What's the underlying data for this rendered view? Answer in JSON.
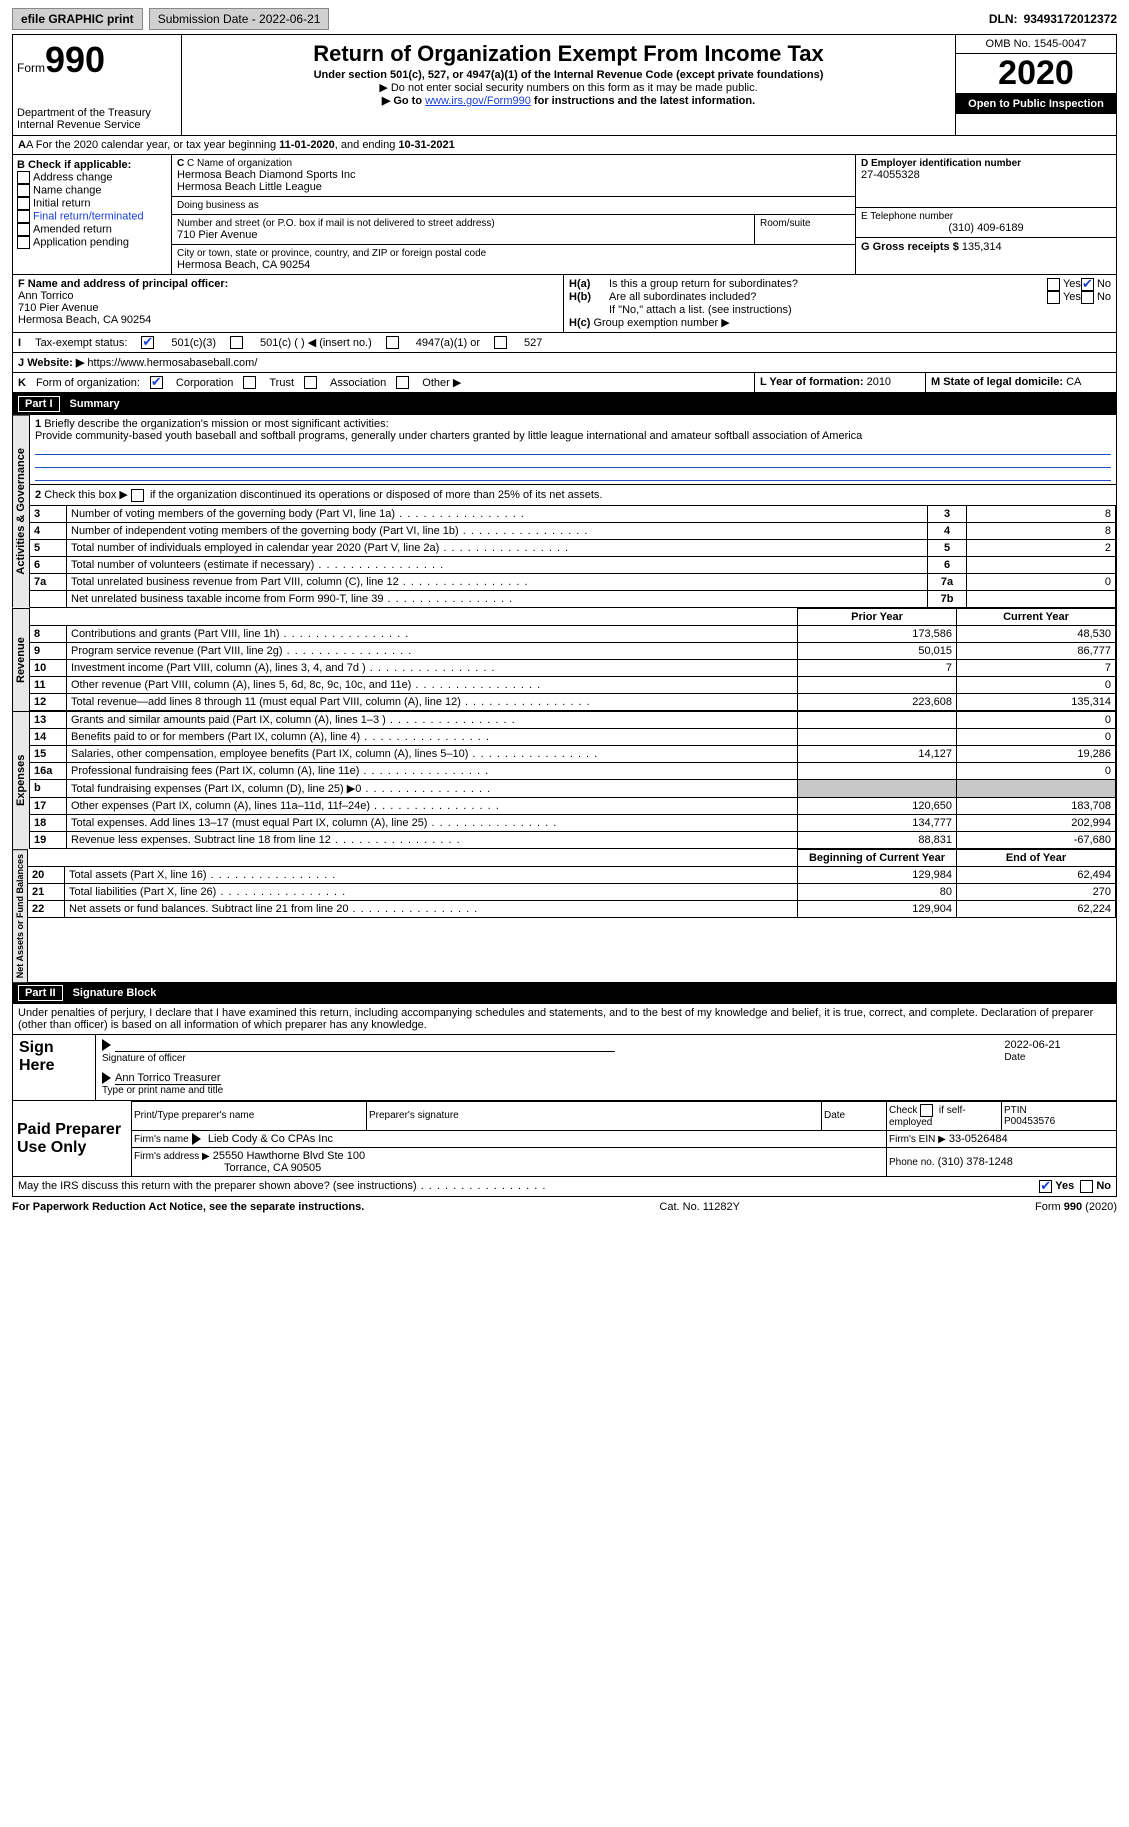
{
  "topbar": {
    "efile": "efile GRAPHIC print",
    "submission": "Submission Date - 2022-06-21",
    "dln_label": "DLN:",
    "dln": "93493172012372"
  },
  "header": {
    "form_word": "Form",
    "form_num": "990",
    "dept": "Department of the Treasury",
    "irs": "Internal Revenue Service",
    "title": "Return of Organization Exempt From Income Tax",
    "sub1": "Under section 501(c), 527, or 4947(a)(1) of the Internal Revenue Code (except private foundations)",
    "sub2": "▶ Do not enter social security numbers on this form as it may be made public.",
    "sub3_a": "▶ Go to ",
    "sub3_link": "www.irs.gov/Form990",
    "sub3_b": " for instructions and the latest information.",
    "omb": "OMB No. 1545-0047",
    "year": "2020",
    "open": "Open to Public Inspection"
  },
  "lineA": {
    "text_a": "A For the 2020 calendar year, or tax year beginning ",
    "begin": "11-01-2020",
    "text_b": ", and ending ",
    "end": "10-31-2021"
  },
  "boxB": {
    "label": "B Check if applicable:",
    "items": [
      "Address change",
      "Name change",
      "Initial return",
      "Final return/terminated",
      "Amended return",
      "Application pending"
    ],
    "tint": [
      false,
      false,
      false,
      true,
      false,
      false
    ]
  },
  "boxC": {
    "label": "C Name of organization",
    "name1": "Hermosa Beach Diamond Sports Inc",
    "name2": "Hermosa Beach Little League",
    "dba": "Doing business as",
    "addr_label": "Number and street (or P.O. box if mail is not delivered to street address)",
    "room": "Room/suite",
    "addr": "710 Pier Avenue",
    "city_label": "City or town, state or province, country, and ZIP or foreign postal code",
    "city": "Hermosa Beach, CA  90254"
  },
  "boxD": {
    "label": "D Employer identification number",
    "ein": "27-4055328"
  },
  "boxE": {
    "label": "E Telephone number",
    "phone": "(310) 409-6189"
  },
  "boxG": {
    "label": "G Gross receipts $",
    "amt": "135,314"
  },
  "boxF": {
    "label": "F Name and address of principal officer:",
    "name": "Ann Torrico",
    "addr": "710 Pier Avenue",
    "city": "Hermosa Beach, CA  90254"
  },
  "boxH": {
    "a_label": "H(a)",
    "a_text": "Is this a group return for subordinates?",
    "yes": "Yes",
    "no": "No",
    "b_label": "H(b)",
    "b_text": "Are all subordinates included?",
    "b_note": "If \"No,\" attach a list. (see instructions)",
    "c_label": "H(c)",
    "c_text": "Group exemption number ▶"
  },
  "boxI": {
    "label": "I",
    "text": "Tax-exempt status:",
    "opts": [
      "501(c)(3)",
      "501(c) (  ) ◀ (insert no.)",
      "4947(a)(1) or",
      "527"
    ]
  },
  "boxJ": {
    "label": "J",
    "text": "Website: ▶",
    "url": "https://www.hermosabaseball.com/"
  },
  "boxK": {
    "label": "K",
    "text": "Form of organization:",
    "opts": [
      "Corporation",
      "Trust",
      "Association",
      "Other ▶"
    ]
  },
  "boxL": {
    "label": "L Year of formation:",
    "val": "2010"
  },
  "boxM": {
    "label": "M State of legal domicile:",
    "val": "CA"
  },
  "part1": {
    "num": "Part I",
    "title": "Summary"
  },
  "tabs": {
    "gov": "Activities & Governance",
    "rev": "Revenue",
    "exp": "Expenses",
    "net": "Net Assets or Fund Balances"
  },
  "q1": {
    "label": "1",
    "text": "Briefly describe the organization's mission or most significant activities:",
    "val": "Provide community-based youth baseball and softball programs, generally under charters granted by little league international and amateur softball association of America"
  },
  "q2": {
    "label": "2",
    "text": "Check this box ▶",
    "text2": " if the organization discontinued its operations or disposed of more than 25% of its net assets."
  },
  "rows_gov": [
    {
      "n": "3",
      "t": "Number of voting members of the governing body (Part VI, line 1a)",
      "k": "3",
      "v": "8"
    },
    {
      "n": "4",
      "t": "Number of independent voting members of the governing body (Part VI, line 1b)",
      "k": "4",
      "v": "8"
    },
    {
      "n": "5",
      "t": "Total number of individuals employed in calendar year 2020 (Part V, line 2a)",
      "k": "5",
      "v": "2"
    },
    {
      "n": "6",
      "t": "Total number of volunteers (estimate if necessary)",
      "k": "6",
      "v": ""
    },
    {
      "n": "7a",
      "t": "Total unrelated business revenue from Part VIII, column (C), line 12",
      "k": "7a",
      "v": "0"
    },
    {
      "n": "",
      "t": "Net unrelated business taxable income from Form 990-T, line 39",
      "k": "7b",
      "v": ""
    }
  ],
  "colHdr": {
    "py": "Prior Year",
    "cy": "Current Year"
  },
  "rows_rev": [
    {
      "n": "8",
      "t": "Contributions and grants (Part VIII, line 1h)",
      "py": "173,586",
      "cy": "48,530"
    },
    {
      "n": "9",
      "t": "Program service revenue (Part VIII, line 2g)",
      "py": "50,015",
      "cy": "86,777"
    },
    {
      "n": "10",
      "t": "Investment income (Part VIII, column (A), lines 3, 4, and 7d )",
      "py": "7",
      "cy": "7"
    },
    {
      "n": "11",
      "t": "Other revenue (Part VIII, column (A), lines 5, 6d, 8c, 9c, 10c, and 11e)",
      "py": "",
      "cy": "0"
    },
    {
      "n": "12",
      "t": "Total revenue—add lines 8 through 11 (must equal Part VIII, column (A), line 12)",
      "py": "223,608",
      "cy": "135,314"
    }
  ],
  "rows_exp": [
    {
      "n": "13",
      "t": "Grants and similar amounts paid (Part IX, column (A), lines 1–3 )",
      "py": "",
      "cy": "0"
    },
    {
      "n": "14",
      "t": "Benefits paid to or for members (Part IX, column (A), line 4)",
      "py": "",
      "cy": "0"
    },
    {
      "n": "15",
      "t": "Salaries, other compensation, employee benefits (Part IX, column (A), lines 5–10)",
      "py": "14,127",
      "cy": "19,286"
    },
    {
      "n": "16a",
      "t": "Professional fundraising fees (Part IX, column (A), line 11e)",
      "py": "",
      "cy": "0"
    },
    {
      "n": "b",
      "t": "Total fundraising expenses (Part IX, column (D), line 25) ▶0",
      "py": "SHADE",
      "cy": "SHADE"
    },
    {
      "n": "17",
      "t": "Other expenses (Part IX, column (A), lines 11a–11d, 11f–24e)",
      "py": "120,650",
      "cy": "183,708"
    },
    {
      "n": "18",
      "t": "Total expenses. Add lines 13–17 (must equal Part IX, column (A), line 25)",
      "py": "134,777",
      "cy": "202,994"
    },
    {
      "n": "19",
      "t": "Revenue less expenses. Subtract line 18 from line 12",
      "py": "88,831",
      "cy": "-67,680"
    }
  ],
  "colHdr2": {
    "py": "Beginning of Current Year",
    "cy": "End of Year"
  },
  "rows_net": [
    {
      "n": "20",
      "t": "Total assets (Part X, line 16)",
      "py": "129,984",
      "cy": "62,494"
    },
    {
      "n": "21",
      "t": "Total liabilities (Part X, line 26)",
      "py": "80",
      "cy": "270"
    },
    {
      "n": "22",
      "t": "Net assets or fund balances. Subtract line 21 from line 20",
      "py": "129,904",
      "cy": "62,224"
    }
  ],
  "part2": {
    "num": "Part II",
    "title": "Signature Block"
  },
  "penalty": "Under penalties of perjury, I declare that I have examined this return, including accompanying schedules and statements, and to the best of my knowledge and belief, it is true, correct, and complete. Declaration of preparer (other than officer) is based on all information of which preparer has any knowledge.",
  "sign": {
    "here": "Sign Here",
    "sig": "Signature of officer",
    "date_l": "Date",
    "date": "2022-06-21",
    "name": "Ann Torrico Treasurer",
    "name_l": "Type or print name and title"
  },
  "paid": {
    "title": "Paid Preparer Use Only",
    "h": [
      "Print/Type preparer's name",
      "Preparer's signature",
      "Date"
    ],
    "check": "Check",
    "se": "if self-employed",
    "ptin_l": "PTIN",
    "ptin": "P00453576",
    "firm_l": "Firm's name",
    "firm": "Lieb Cody & Co CPAs Inc",
    "ein_l": "Firm's EIN ▶",
    "ein": "33-0526484",
    "addr_l": "Firm's address ▶",
    "addr1": "25550 Hawthorne Blvd Ste 100",
    "addr2": "Torrance, CA  90505",
    "ph_l": "Phone no.",
    "ph": "(310) 378-1248"
  },
  "discuss": {
    "text": "May the IRS discuss this return with the preparer shown above? (see instructions)",
    "yes": "Yes",
    "no": "No"
  },
  "footer": {
    "pra": "For Paperwork Reduction Act Notice, see the separate instructions.",
    "cat": "Cat. No. 11282Y",
    "form": "Form 990 (2020)"
  },
  "colors": {
    "shade": "#c8c8c8",
    "link": "#1a3fd4"
  }
}
